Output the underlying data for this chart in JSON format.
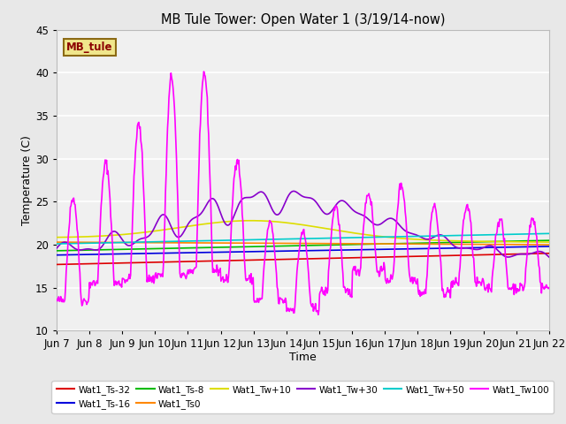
{
  "title": "MB Tule Tower: Open Water 1 (3/19/14-now)",
  "xlabel": "Time",
  "ylabel": "Temperature (C)",
  "ylim": [
    10,
    45
  ],
  "yticks": [
    10,
    15,
    20,
    25,
    30,
    35,
    40,
    45
  ],
  "xlim_days": 15,
  "fig_bg": "#e8e8e8",
  "plot_bg": "#f0f0f0",
  "grid_color": "#ffffff",
  "legend_label": "MB_tule",
  "legend_bg": "#f0e68c",
  "legend_border": "#8b6914",
  "legend_text_color": "#8b0000",
  "series_order": [
    "Wat1_Ts-32",
    "Wat1_Ts-16",
    "Wat1_Ts-8",
    "Wat1_Ts0",
    "Wat1_Tw+10",
    "Wat1_Tw+30",
    "Wat1_Tw+50",
    "Wat1_Tw100"
  ],
  "series": {
    "Wat1_Ts-32": {
      "color": "#dd0000",
      "lw": 1.2
    },
    "Wat1_Ts-16": {
      "color": "#0000dd",
      "lw": 1.2
    },
    "Wat1_Ts-8": {
      "color": "#00bb00",
      "lw": 1.2
    },
    "Wat1_Ts0": {
      "color": "#ff8800",
      "lw": 1.2
    },
    "Wat1_Tw+10": {
      "color": "#dddd00",
      "lw": 1.2
    },
    "Wat1_Tw+30": {
      "color": "#8800cc",
      "lw": 1.2
    },
    "Wat1_Tw+50": {
      "color": "#00cccc",
      "lw": 1.2
    },
    "Wat1_Tw100": {
      "color": "#ff00ff",
      "lw": 1.2
    }
  },
  "xtick_labels": [
    "Jun 7",
    "Jun 8",
    "Jun 9",
    "Jun 10",
    "Jun 11",
    "Jun 12",
    "Jun 13",
    "Jun 14",
    "Jun 15",
    "Jun 16",
    "Jun 17",
    "Jun 18",
    "Jun 19",
    "Jun 20",
    "Jun 21",
    "Jun 22"
  ],
  "xtick_positions": [
    0,
    1,
    2,
    3,
    4,
    5,
    6,
    7,
    8,
    9,
    10,
    11,
    12,
    13,
    14,
    15
  ]
}
